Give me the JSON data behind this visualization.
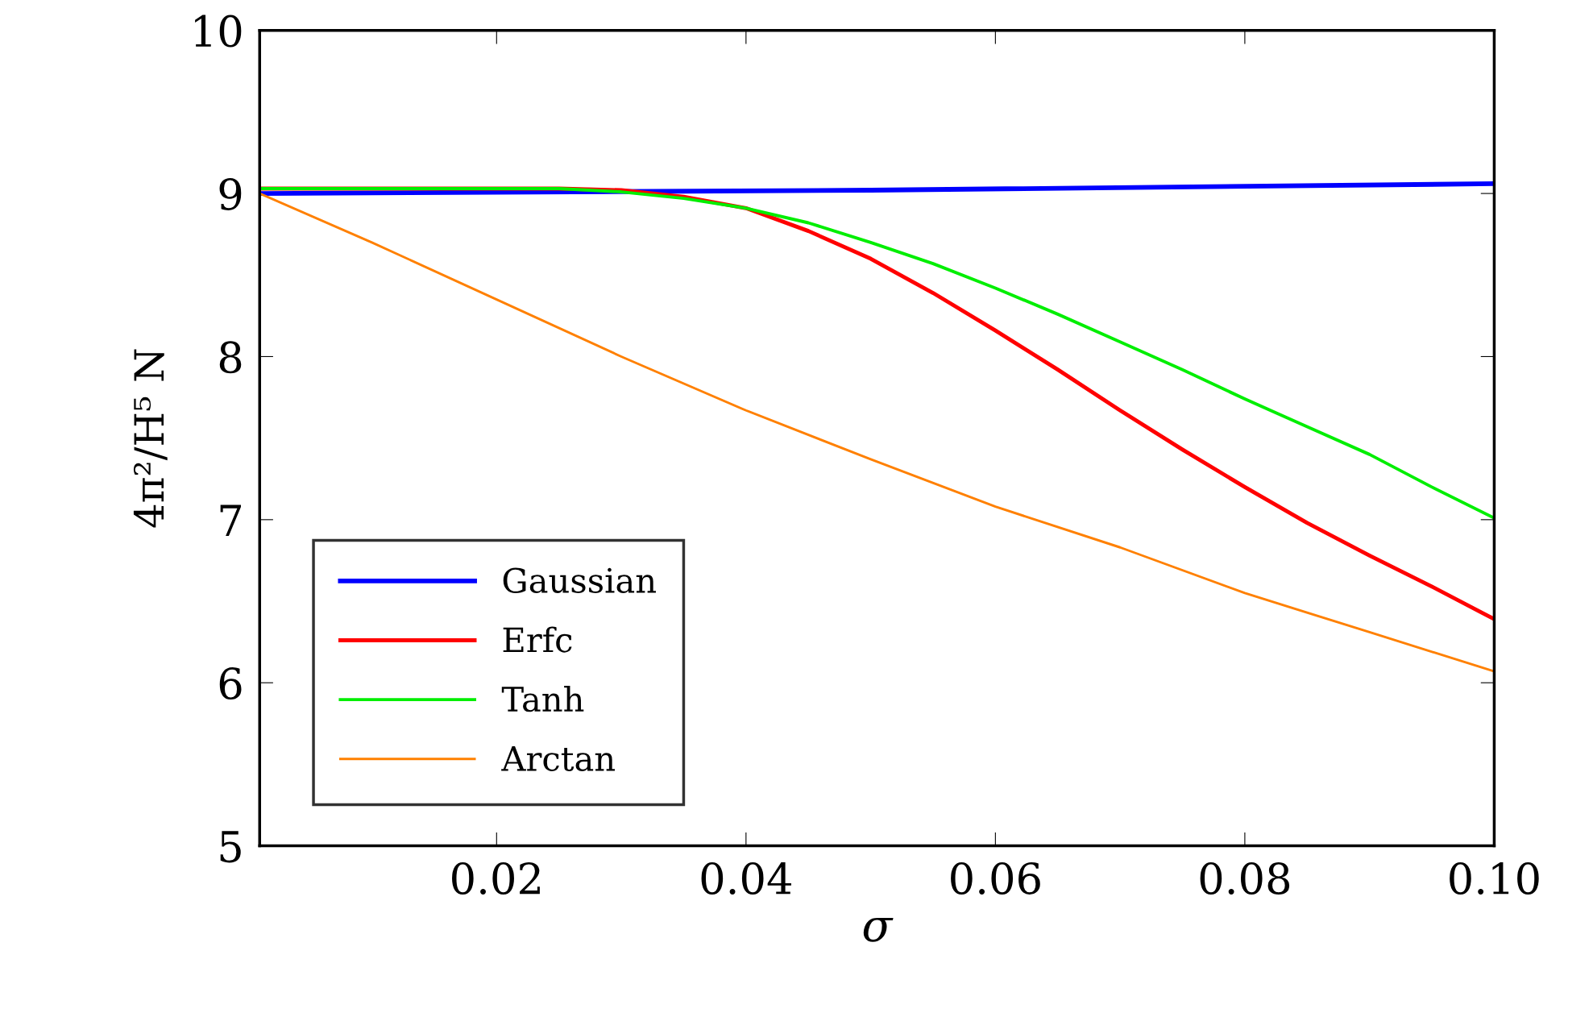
{
  "chart_data": {
    "type": "line",
    "xlabel": "σ",
    "ylabel": "4π²/H⁵ N",
    "xlim": [
      0.001,
      0.1
    ],
    "ylim": [
      5,
      10
    ],
    "xticks": [
      0.02,
      0.04,
      0.06,
      {
        "value": 0.1,
        "label": "0.10"
      },
      0.08
    ],
    "yticks": [
      5,
      6,
      7,
      8,
      9,
      10
    ],
    "grid": false,
    "legend": "bottom left",
    "marker": "none",
    "line_style": "solid",
    "series": [
      {
        "name": "Gaussian",
        "color": "#0000ff",
        "x": [
          0.001,
          0.05,
          0.1
        ],
        "values": [
          9.0,
          9.02,
          9.06
        ]
      },
      {
        "name": "Erfc",
        "color": "#ff0000",
        "x": [
          0.001,
          0.01,
          0.02,
          0.025,
          0.03,
          0.035,
          0.04,
          0.045,
          0.05,
          0.055,
          0.06,
          0.065,
          0.07,
          0.075,
          0.08,
          0.085,
          0.09,
          0.095,
          0.1
        ],
        "values": [
          9.03,
          9.03,
          9.03,
          9.03,
          9.02,
          8.98,
          8.91,
          8.77,
          8.6,
          8.39,
          8.16,
          7.92,
          7.67,
          7.43,
          7.2,
          6.98,
          6.78,
          6.59,
          6.39
        ]
      },
      {
        "name": "Tanh",
        "color": "#00ee00",
        "x": [
          0.001,
          0.01,
          0.02,
          0.025,
          0.03,
          0.035,
          0.04,
          0.045,
          0.05,
          0.055,
          0.06,
          0.065,
          0.07,
          0.075,
          0.08,
          0.085,
          0.09,
          0.095,
          0.1
        ],
        "values": [
          9.03,
          9.03,
          9.03,
          9.03,
          9.01,
          8.97,
          8.91,
          8.82,
          8.7,
          8.57,
          8.42,
          8.26,
          8.09,
          7.92,
          7.74,
          7.57,
          7.4,
          7.2,
          7.01
        ]
      },
      {
        "name": "Arctan",
        "color": "#ff8000",
        "x": [
          0.001,
          0.01,
          0.02,
          0.03,
          0.04,
          0.05,
          0.06,
          0.07,
          0.08,
          0.09,
          0.1
        ],
        "values": [
          9.0,
          8.7,
          8.35,
          8.0,
          7.67,
          7.37,
          7.08,
          6.83,
          6.55,
          6.31,
          6.07
        ]
      }
    ]
  }
}
